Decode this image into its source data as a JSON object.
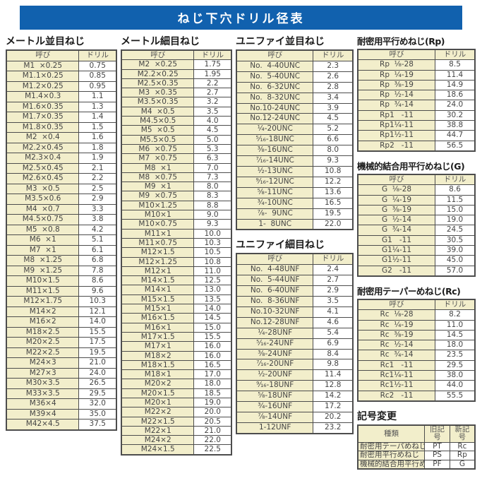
{
  "title": "ねじ下穴ドリル径表",
  "colors": {
    "header_bar": "#1161ae",
    "cell_fill": "#f2eecb",
    "border": "#4d4d4d"
  },
  "columns_header": {
    "name": "呼び",
    "drill": "ドリル"
  },
  "sections": {
    "metric_coarse": {
      "title": "メートル並目ねじ",
      "rows": [
        [
          "M1  ×0.25",
          "0.75"
        ],
        [
          "M1.1×0.25",
          "0.85"
        ],
        [
          "M1.2×0.25",
          "0.95"
        ],
        [
          "M1.4×0.3",
          "1.1"
        ],
        [
          "M1.6×0.35",
          "1.3"
        ],
        [
          "M1.7×0.35",
          "1.4"
        ],
        [
          "M1.8×0.35",
          "1.5"
        ],
        [
          "M2  ×0.4",
          "1.6"
        ],
        [
          "M2.2×0.45",
          "1.8"
        ],
        [
          "M2.3×0.4",
          "1.9"
        ],
        [
          "M2.5×0.45",
          "2.1"
        ],
        [
          "M2.6×0.45",
          "2.2"
        ],
        [
          "M3  ×0.5",
          "2.5"
        ],
        [
          "M3.5×0.6",
          "2.9"
        ],
        [
          "M4  ×0.7",
          "3.3"
        ],
        [
          "M4.5×0.75",
          "3.8"
        ],
        [
          "M5  ×0.8",
          "4.2"
        ],
        [
          "M6  ×1",
          "5.1"
        ],
        [
          "M7  ×1",
          "6.1"
        ],
        [
          "M8  ×1.25",
          "6.8"
        ],
        [
          "M9  ×1.25",
          "7.8"
        ],
        [
          "M10×1.5",
          "8.6"
        ],
        [
          "M11×1.5",
          "9.6"
        ],
        [
          "M12×1.75",
          "10.3"
        ],
        [
          "M14×2",
          "12.1"
        ],
        [
          "M16×2",
          "14.0"
        ],
        [
          "M18×2.5",
          "15.5"
        ],
        [
          "M20×2.5",
          "17.5"
        ],
        [
          "M22×2.5",
          "19.5"
        ],
        [
          "M24×3",
          "21.0"
        ],
        [
          "M27×3",
          "24.0"
        ],
        [
          "M30×3.5",
          "26.5"
        ],
        [
          "M33×3.5",
          "29.5"
        ],
        [
          "M36×4",
          "32.0"
        ],
        [
          "M39×4",
          "35.0"
        ],
        [
          "M42×4.5",
          "37.5"
        ]
      ]
    },
    "metric_fine": {
      "title": "メートル細目ねじ",
      "rows": [
        [
          "M2  ×0.25",
          "1.75"
        ],
        [
          "M2.2×0.25",
          "1.95"
        ],
        [
          "M2.5×0.35",
          "2.2"
        ],
        [
          "M3  ×0.35",
          "2.7"
        ],
        [
          "M3.5×0.35",
          "3.2"
        ],
        [
          "M4  ×0.5",
          "3.5"
        ],
        [
          "M4.5×0.5",
          "4.0"
        ],
        [
          "M5  ×0.5",
          "4.5"
        ],
        [
          "M5.5×0.5",
          "5.0"
        ],
        [
          "M6  ×0.75",
          "5.3"
        ],
        [
          "M7  ×0.75",
          "6.3"
        ],
        [
          "M8  ×1",
          "7.0"
        ],
        [
          "M8  ×0.75",
          "7.3"
        ],
        [
          "M9  ×1",
          "8.0"
        ],
        [
          "M9  ×0.75",
          "8.3"
        ],
        [
          "M10×1.25",
          "8.8"
        ],
        [
          "M10×1",
          "9.0"
        ],
        [
          "M10×0.75",
          "9.3"
        ],
        [
          "M11×1",
          "10.0"
        ],
        [
          "M11×0.75",
          "10.3"
        ],
        [
          "M12×1.5",
          "10.5"
        ],
        [
          "M12×1.25",
          "10.8"
        ],
        [
          "M12×1",
          "11.0"
        ],
        [
          "M14×1.5",
          "12.5"
        ],
        [
          "M14×1",
          "13.0"
        ],
        [
          "M15×1.5",
          "13.5"
        ],
        [
          "M15×1",
          "14.0"
        ],
        [
          "M16×1.5",
          "14.5"
        ],
        [
          "M16×1",
          "15.0"
        ],
        [
          "M17×1.5",
          "15.5"
        ],
        [
          "M17×1",
          "16.0"
        ],
        [
          "M18×2",
          "16.0"
        ],
        [
          "M18×1.5",
          "16.5"
        ],
        [
          "M18×1",
          "17.0"
        ],
        [
          "M20×2",
          "18.0"
        ],
        [
          "M20×1.5",
          "18.5"
        ],
        [
          "M20×1",
          "19.0"
        ],
        [
          "M22×2",
          "20.0"
        ],
        [
          "M22×1.5",
          "20.5"
        ],
        [
          "M22×1",
          "21.0"
        ],
        [
          "M24×2",
          "22.0"
        ],
        [
          "M24×1.5",
          "22.5"
        ]
      ]
    },
    "unified_coarse": {
      "title": "ユニファイ並目ねじ",
      "rows": [
        [
          "No.  4-40UNC",
          "2.3"
        ],
        [
          "No.  5-40UNC",
          "2.6"
        ],
        [
          "No.  6-32UNC",
          "2.8"
        ],
        [
          "No.  8-32UNC",
          "3.4"
        ],
        [
          "No.10-24UNC",
          "3.9"
        ],
        [
          "No.12-24UNC",
          "4.5"
        ],
        [
          "¹⁄₄-20UNC",
          "5.2"
        ],
        [
          "⁵⁄₁₆-18UNC",
          "6.6"
        ],
        [
          "³⁄₈-16UNC",
          "8.0"
        ],
        [
          "⁷⁄₁₆-14UNC",
          "9.3"
        ],
        [
          "¹⁄₂-13UNC",
          "10.8"
        ],
        [
          "⁹⁄₁₆-12UNC",
          "12.2"
        ],
        [
          "⁵⁄₈-11UNC",
          "13.6"
        ],
        [
          "³⁄₄-10UNC",
          "16.5"
        ],
        [
          "⁷⁄₈-  9UNC",
          "19.5"
        ],
        [
          "1-  8UNC",
          "22.0"
        ]
      ]
    },
    "unified_fine": {
      "title": "ユニファイ細目ねじ",
      "rows": [
        [
          "No.  4-48UNF",
          "2.4"
        ],
        [
          "No.  5-44UNF",
          "2.7"
        ],
        [
          "No.  6-40UNF",
          "2.9"
        ],
        [
          "No.  8-36UNF",
          "3.5"
        ],
        [
          "No.10-32UNF",
          "4.1"
        ],
        [
          "No.12-28UNF",
          "4.6"
        ],
        [
          "¹⁄₄-28UNF",
          "5.4"
        ],
        [
          "⁵⁄₁₆-24UNF",
          "6.9"
        ],
        [
          "³⁄₈-24UNF",
          "8.4"
        ],
        [
          "⁷⁄₁₆-20UNF",
          "9.8"
        ],
        [
          "¹⁄₂-20UNF",
          "11.4"
        ],
        [
          "⁹⁄₁₆-18UNF",
          "12.8"
        ],
        [
          "⁵⁄₈-18UNF",
          "14.2"
        ],
        [
          "³⁄₄-16UNF",
          "17.2"
        ],
        [
          "⁷⁄₈-14UNF",
          "20.2"
        ],
        [
          "1-12UNF",
          "23.2"
        ]
      ]
    },
    "rp": {
      "title": "耐密用平行めねじ(Rp)",
      "rows": [
        [
          "Rp  ¹⁄₈-28",
          "8.5"
        ],
        [
          "Rp  ¹⁄₄-19",
          "11.4"
        ],
        [
          "Rp  ³⁄₈-19",
          "14.9"
        ],
        [
          "Rp  ¹⁄₂-14",
          "18.6"
        ],
        [
          "Rp  ³⁄₄-14",
          "24.0"
        ],
        [
          "Rp1   -11",
          "30.2"
        ],
        [
          "Rp1¹⁄₄-11",
          "38.8"
        ],
        [
          "Rp1¹⁄₂-11",
          "44.7"
        ],
        [
          "Rp2   -11",
          "56.5"
        ]
      ]
    },
    "g": {
      "title": "機械的結合用平行めねじ(G)",
      "rows": [
        [
          "G  ¹⁄₈-28",
          "8.6"
        ],
        [
          "G  ¹⁄₄-19",
          "11.5"
        ],
        [
          "G  ³⁄₈-19",
          "15.0"
        ],
        [
          "G  ¹⁄₂-14",
          "19.0"
        ],
        [
          "G  ³⁄₄-14",
          "24.5"
        ],
        [
          "G1   -11",
          "30.5"
        ],
        [
          "G1¹⁄₄-11",
          "39.0"
        ],
        [
          "G1¹⁄₂-11",
          "45.0"
        ],
        [
          "G2   -11",
          "57.0"
        ]
      ]
    },
    "rc": {
      "title": "耐密用テーパーめねじ(Rc)",
      "rows": [
        [
          "Rc  ¹⁄₈-28",
          "8.2"
        ],
        [
          "Rc  ¹⁄₄-19",
          "11.0"
        ],
        [
          "Rc  ³⁄₈-19",
          "14.5"
        ],
        [
          "Rc  ¹⁄₂-14",
          "18.0"
        ],
        [
          "Rc  ³⁄₄-14",
          "23.5"
        ],
        [
          "Rc1   -11",
          "29.5"
        ],
        [
          "Rc1¹⁄₄-11",
          "38.0"
        ],
        [
          "Rc1¹⁄₂-11",
          "44.0"
        ],
        [
          "Rc2   -11",
          "55.5"
        ]
      ]
    }
  },
  "symbol_change": {
    "title": "記号変更",
    "headers": [
      "種類",
      "旧記号",
      "新記号"
    ],
    "rows": [
      [
        "耐密用テーパめねじ",
        "PT",
        "Rc"
      ],
      [
        "耐密用平行めねじ",
        "PS",
        "Rp"
      ],
      [
        "機械的結合用平行めねじ",
        "PF",
        "G"
      ]
    ]
  }
}
